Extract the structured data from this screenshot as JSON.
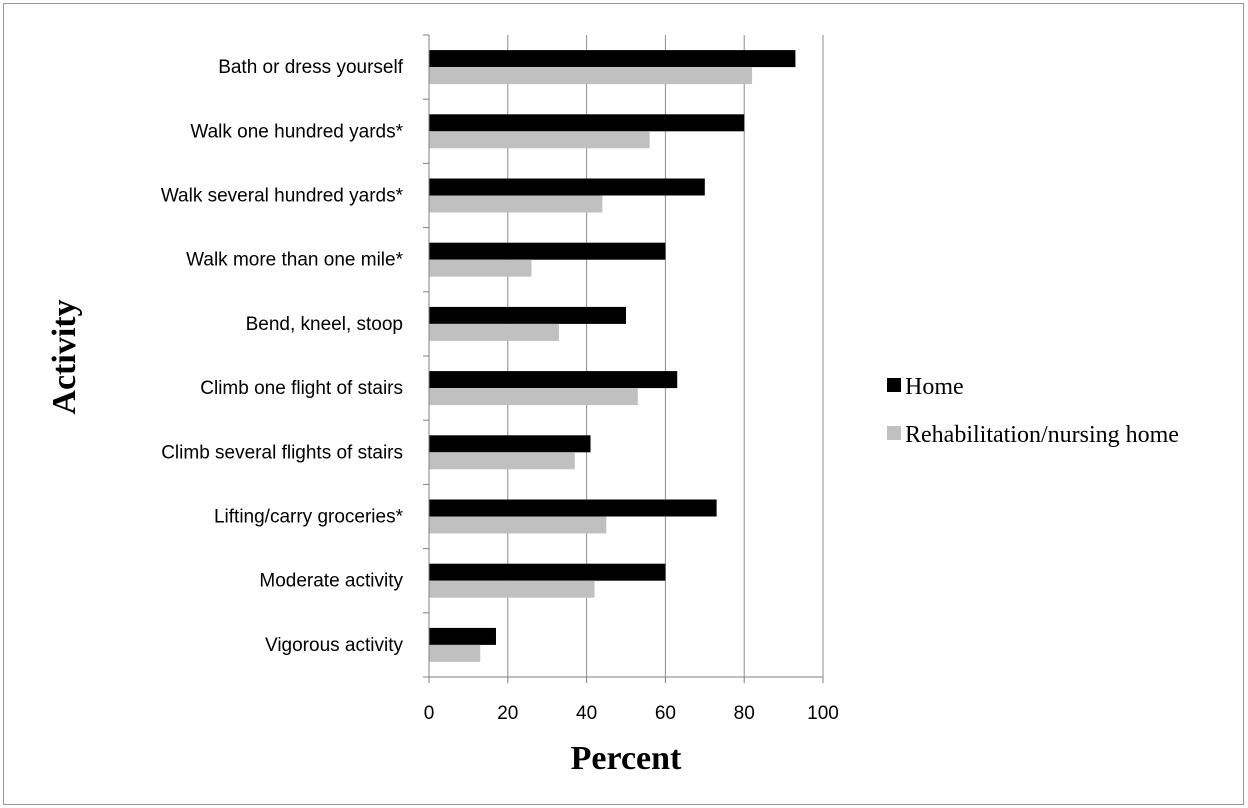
{
  "chart_data": {
    "type": "bar",
    "orientation": "horizontal",
    "title": "",
    "xlabel": "Percent",
    "ylabel": "Activity",
    "xlim": [
      0,
      100
    ],
    "xticks": [
      "0",
      "20",
      "40",
      "60",
      "80",
      "100"
    ],
    "grid": "vertical",
    "legend_position": "right",
    "categories": [
      "Bath or dress yourself",
      "Walk one hundred yards*",
      "Walk several hundred yards*",
      "Walk more than one mile*",
      "Bend, kneel, stoop",
      "Climb one flight of stairs",
      "Climb several flights of stairs",
      "Lifting/carry groceries*",
      "Moderate activity",
      "Vigorous activity"
    ],
    "series": [
      {
        "name": "Home",
        "color": "#000000",
        "values": [
          93,
          80,
          70,
          60,
          50,
          63,
          41,
          73,
          60,
          17
        ]
      },
      {
        "name": "Rehabilitation/nursing home",
        "color": "#c0c0c0",
        "values": [
          82,
          56,
          44,
          26,
          33,
          53,
          37,
          45,
          42,
          13
        ]
      }
    ]
  }
}
